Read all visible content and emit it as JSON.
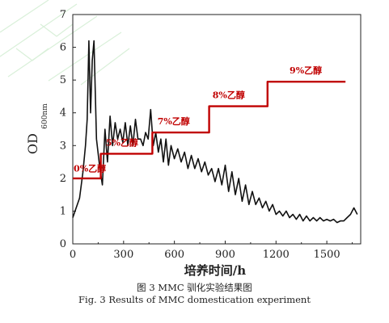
{
  "chart_data": {
    "type": "line",
    "title": "",
    "xlabel": "培养时间/h",
    "ylabel_main": "OD",
    "ylabel_sub": "600nm",
    "xlim": [
      0,
      1700
    ],
    "ylim": [
      0,
      7
    ],
    "xticks": [
      0,
      300,
      600,
      900,
      1200,
      1500
    ],
    "yticks": [
      0,
      1,
      2,
      3,
      4,
      5,
      6,
      7
    ],
    "grid": false,
    "legend": "none",
    "series": [
      {
        "name": "",
        "color": "#111111",
        "x": [
          0,
          20,
          40,
          60,
          75,
          85,
          95,
          105,
          115,
          125,
          140,
          160,
          175,
          190,
          205,
          220,
          235,
          250,
          265,
          280,
          295,
          310,
          325,
          340,
          355,
          370,
          385,
          400,
          415,
          430,
          445,
          460,
          475,
          490,
          505,
          520,
          535,
          550,
          565,
          580,
          600,
          620,
          640,
          660,
          680,
          700,
          720,
          740,
          760,
          780,
          800,
          820,
          840,
          860,
          880,
          900,
          920,
          940,
          960,
          980,
          1000,
          1020,
          1040,
          1060,
          1080,
          1100,
          1120,
          1140,
          1160,
          1180,
          1200,
          1220,
          1240,
          1260,
          1280,
          1300,
          1320,
          1340,
          1360,
          1380,
          1400,
          1420,
          1440,
          1460,
          1480,
          1500,
          1520,
          1540,
          1560,
          1580,
          1600,
          1620,
          1640,
          1660,
          1680
        ],
        "y": [
          0.8,
          1.1,
          1.4,
          2.2,
          3.0,
          3.8,
          6.2,
          4.0,
          5.6,
          6.2,
          3.2,
          2.3,
          1.8,
          3.5,
          2.5,
          3.9,
          3.0,
          3.7,
          3.2,
          3.5,
          3.1,
          3.7,
          3.0,
          3.6,
          3.0,
          3.8,
          3.2,
          3.2,
          3.0,
          3.4,
          3.2,
          4.1,
          3.0,
          3.4,
          2.8,
          3.2,
          2.5,
          3.2,
          2.4,
          3.0,
          2.6,
          2.9,
          2.5,
          2.8,
          2.3,
          2.7,
          2.3,
          2.6,
          2.2,
          2.5,
          2.1,
          2.3,
          1.9,
          2.3,
          1.8,
          2.4,
          1.6,
          2.2,
          1.5,
          2.0,
          1.3,
          1.8,
          1.2,
          1.6,
          1.2,
          1.4,
          1.1,
          1.3,
          1.0,
          1.2,
          0.9,
          1.0,
          0.85,
          1.0,
          0.8,
          0.9,
          0.75,
          0.9,
          0.7,
          0.85,
          0.7,
          0.8,
          0.7,
          0.8,
          0.7,
          0.75,
          0.7,
          0.75,
          0.65,
          0.7,
          0.7,
          0.8,
          0.9,
          1.1,
          0.9
        ]
      },
      {
        "name": "ethanol",
        "color": "#c00000",
        "x": [
          0,
          165,
          165,
          470,
          470,
          805,
          805,
          1150,
          1150,
          1610
        ],
        "y": [
          2.0,
          2.0,
          2.75,
          2.75,
          3.4,
          3.4,
          4.2,
          4.2,
          4.95,
          4.95
        ]
      }
    ],
    "annotations": [
      {
        "text": "0%乙醇",
        "x": 5,
        "y": 2.2
      },
      {
        "text": "5%乙醇",
        "x": 195,
        "y": 3.0
      },
      {
        "text": "7%乙醇",
        "x": 500,
        "y": 3.65
      },
      {
        "text": "8%乙醇",
        "x": 825,
        "y": 4.45
      },
      {
        "text": "9%乙醇",
        "x": 1280,
        "y": 5.2
      }
    ]
  },
  "caption": {
    "cn": "图 3 MMC 驯化实验结果图",
    "en": "Fig. 3 Results of MMC domestication experiment"
  }
}
